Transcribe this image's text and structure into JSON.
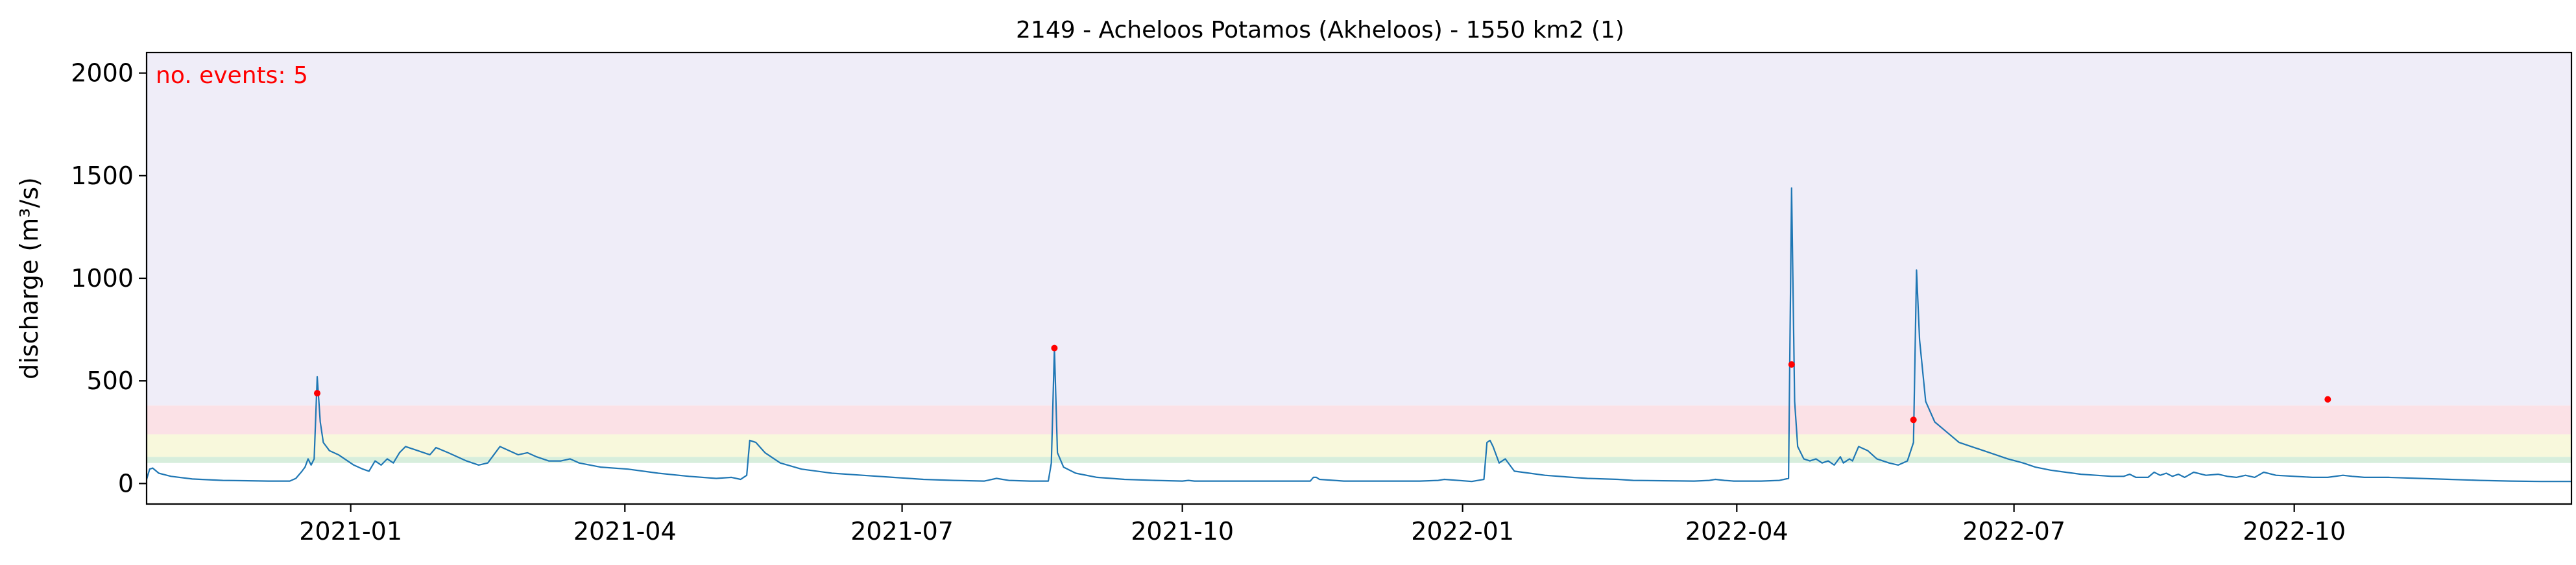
{
  "chart_data": {
    "type": "line",
    "title": "2149 - Acheloos Potamos (Akheloos) - 1550 km2 (1)",
    "xlabel": "",
    "ylabel": "discharge (m³/s)",
    "annotation": "no. events: 5",
    "xlim": [
      "2020-10-26",
      "2022-12-31"
    ],
    "ylim": [
      -100,
      2100
    ],
    "x_ticks": [
      "2021-01-01",
      "2021-04-01",
      "2021-07-01",
      "2021-10-01",
      "2022-01-01",
      "2022-04-01",
      "2022-07-01",
      "2022-10-01"
    ],
    "x_tick_labels": [
      "2021-01",
      "2021-04",
      "2021-07",
      "2021-10",
      "2022-01",
      "2022-04",
      "2022-07",
      "2022-10"
    ],
    "y_ticks": [
      0,
      500,
      1000,
      1500,
      2000
    ],
    "y_tick_labels": [
      "0",
      "500",
      "1000",
      "1500",
      "2000"
    ],
    "threshold_bands": [
      {
        "from": 100,
        "to": 130,
        "color": "#d7eedc"
      },
      {
        "from": 130,
        "to": 240,
        "color": "#f8f8dc"
      },
      {
        "from": 240,
        "to": 380,
        "color": "#fbe1e6"
      },
      {
        "from": 380,
        "to": 2100,
        "color": "#efedf8"
      }
    ],
    "series": [
      {
        "line_color": "#1f77b4",
        "points": [
          [
            "2020-10-26",
            20
          ],
          [
            "2020-10-27",
            70
          ],
          [
            "2020-10-28",
            75
          ],
          [
            "2020-10-30",
            50
          ],
          [
            "2020-11-03",
            35
          ],
          [
            "2020-11-10",
            22
          ],
          [
            "2020-11-20",
            15
          ],
          [
            "2020-12-05",
            12
          ],
          [
            "2020-12-12",
            12
          ],
          [
            "2020-12-14",
            25
          ],
          [
            "2020-12-16",
            60
          ],
          [
            "2020-12-17",
            80
          ],
          [
            "2020-12-18",
            120
          ],
          [
            "2020-12-19",
            90
          ],
          [
            "2020-12-20",
            120
          ],
          [
            "2020-12-21",
            520
          ],
          [
            "2020-12-22",
            300
          ],
          [
            "2020-12-23",
            200
          ],
          [
            "2020-12-25",
            160
          ],
          [
            "2020-12-28",
            140
          ],
          [
            "2021-01-02",
            90
          ],
          [
            "2021-01-05",
            70
          ],
          [
            "2021-01-07",
            60
          ],
          [
            "2021-01-09",
            110
          ],
          [
            "2021-01-11",
            90
          ],
          [
            "2021-01-13",
            120
          ],
          [
            "2021-01-15",
            100
          ],
          [
            "2021-01-17",
            150
          ],
          [
            "2021-01-19",
            180
          ],
          [
            "2021-01-23",
            160
          ],
          [
            "2021-01-27",
            140
          ],
          [
            "2021-01-29",
            175
          ],
          [
            "2021-02-02",
            150
          ],
          [
            "2021-02-08",
            110
          ],
          [
            "2021-02-12",
            90
          ],
          [
            "2021-02-15",
            100
          ],
          [
            "2021-02-19",
            180
          ],
          [
            "2021-02-22",
            160
          ],
          [
            "2021-02-25",
            140
          ],
          [
            "2021-02-28",
            150
          ],
          [
            "2021-03-03",
            130
          ],
          [
            "2021-03-07",
            110
          ],
          [
            "2021-03-11",
            110
          ],
          [
            "2021-03-14",
            120
          ],
          [
            "2021-03-17",
            100
          ],
          [
            "2021-03-24",
            80
          ],
          [
            "2021-04-02",
            70
          ],
          [
            "2021-04-12",
            50
          ],
          [
            "2021-04-22",
            35
          ],
          [
            "2021-05-01",
            25
          ],
          [
            "2021-05-06",
            30
          ],
          [
            "2021-05-09",
            20
          ],
          [
            "2021-05-11",
            40
          ],
          [
            "2021-05-12",
            210
          ],
          [
            "2021-05-14",
            200
          ],
          [
            "2021-05-17",
            150
          ],
          [
            "2021-05-22",
            100
          ],
          [
            "2021-05-29",
            70
          ],
          [
            "2021-06-08",
            50
          ],
          [
            "2021-06-18",
            40
          ],
          [
            "2021-06-28",
            30
          ],
          [
            "2021-07-08",
            20
          ],
          [
            "2021-07-18",
            15
          ],
          [
            "2021-07-28",
            12
          ],
          [
            "2021-08-01",
            25
          ],
          [
            "2021-08-05",
            15
          ],
          [
            "2021-08-12",
            12
          ],
          [
            "2021-08-18",
            12
          ],
          [
            "2021-08-19",
            100
          ],
          [
            "2021-08-20",
            660
          ],
          [
            "2021-08-21",
            150
          ],
          [
            "2021-08-23",
            80
          ],
          [
            "2021-08-27",
            50
          ],
          [
            "2021-09-03",
            30
          ],
          [
            "2021-09-12",
            20
          ],
          [
            "2021-09-22",
            15
          ],
          [
            "2021-10-01",
            12
          ],
          [
            "2021-10-03",
            15
          ],
          [
            "2021-10-05",
            12
          ],
          [
            "2021-10-22",
            12
          ],
          [
            "2021-11-10",
            12
          ],
          [
            "2021-11-12",
            12
          ],
          [
            "2021-11-13",
            30
          ],
          [
            "2021-11-14",
            30
          ],
          [
            "2021-11-15",
            20
          ],
          [
            "2021-11-23",
            12
          ],
          [
            "2021-12-12",
            12
          ],
          [
            "2021-12-18",
            12
          ],
          [
            "2021-12-24",
            15
          ],
          [
            "2021-12-26",
            20
          ],
          [
            "2022-01-04",
            10
          ],
          [
            "2022-01-08",
            20
          ],
          [
            "2022-01-09",
            200
          ],
          [
            "2022-01-10",
            210
          ],
          [
            "2022-01-11",
            180
          ],
          [
            "2022-01-13",
            100
          ],
          [
            "2022-01-15",
            120
          ],
          [
            "2022-01-17",
            80
          ],
          [
            "2022-01-18",
            60
          ],
          [
            "2022-01-23",
            50
          ],
          [
            "2022-01-28",
            40
          ],
          [
            "2022-02-06",
            30
          ],
          [
            "2022-02-11",
            25
          ],
          [
            "2022-02-21",
            20
          ],
          [
            "2022-02-26",
            15
          ],
          [
            "2022-03-18",
            12
          ],
          [
            "2022-03-23",
            15
          ],
          [
            "2022-03-25",
            20
          ],
          [
            "2022-03-28",
            15
          ],
          [
            "2022-03-31",
            12
          ],
          [
            "2022-04-01",
            12
          ],
          [
            "2022-04-09",
            12
          ],
          [
            "2022-04-15",
            15
          ],
          [
            "2022-04-18",
            25
          ],
          [
            "2022-04-19",
            1440
          ],
          [
            "2022-04-20",
            400
          ],
          [
            "2022-04-21",
            180
          ],
          [
            "2022-04-23",
            120
          ],
          [
            "2022-04-25",
            110
          ],
          [
            "2022-04-27",
            120
          ],
          [
            "2022-04-29",
            100
          ],
          [
            "2022-05-01",
            110
          ],
          [
            "2022-05-03",
            90
          ],
          [
            "2022-05-05",
            130
          ],
          [
            "2022-05-06",
            100
          ],
          [
            "2022-05-08",
            120
          ],
          [
            "2022-05-09",
            110
          ],
          [
            "2022-05-11",
            180
          ],
          [
            "2022-05-14",
            160
          ],
          [
            "2022-05-17",
            120
          ],
          [
            "2022-05-21",
            100
          ],
          [
            "2022-05-24",
            90
          ],
          [
            "2022-05-27",
            110
          ],
          [
            "2022-05-29",
            200
          ],
          [
            "2022-05-30",
            1040
          ],
          [
            "2022-05-31",
            700
          ],
          [
            "2022-06-02",
            400
          ],
          [
            "2022-06-05",
            300
          ],
          [
            "2022-06-09",
            250
          ],
          [
            "2022-06-13",
            200
          ],
          [
            "2022-06-17",
            180
          ],
          [
            "2022-06-21",
            160
          ],
          [
            "2022-06-25",
            140
          ],
          [
            "2022-06-29",
            120
          ],
          [
            "2022-07-04",
            100
          ],
          [
            "2022-07-08",
            80
          ],
          [
            "2022-07-13",
            65
          ],
          [
            "2022-07-18",
            55
          ],
          [
            "2022-07-23",
            45
          ],
          [
            "2022-07-28",
            40
          ],
          [
            "2022-08-02",
            35
          ],
          [
            "2022-08-06",
            35
          ],
          [
            "2022-08-08",
            45
          ],
          [
            "2022-08-10",
            30
          ],
          [
            "2022-08-14",
            30
          ],
          [
            "2022-08-16",
            55
          ],
          [
            "2022-08-18",
            40
          ],
          [
            "2022-08-20",
            50
          ],
          [
            "2022-08-22",
            35
          ],
          [
            "2022-08-24",
            45
          ],
          [
            "2022-08-26",
            30
          ],
          [
            "2022-08-29",
            55
          ],
          [
            "2022-09-02",
            40
          ],
          [
            "2022-09-06",
            45
          ],
          [
            "2022-09-09",
            35
          ],
          [
            "2022-09-12",
            30
          ],
          [
            "2022-09-15",
            40
          ],
          [
            "2022-09-18",
            30
          ],
          [
            "2022-09-21",
            55
          ],
          [
            "2022-09-25",
            40
          ],
          [
            "2022-10-01",
            35
          ],
          [
            "2022-10-07",
            30
          ],
          [
            "2022-10-12",
            30
          ],
          [
            "2022-10-17",
            40
          ],
          [
            "2022-10-20",
            35
          ],
          [
            "2022-10-24",
            30
          ],
          [
            "2022-11-01",
            30
          ],
          [
            "2022-11-11",
            25
          ],
          [
            "2022-11-21",
            20
          ],
          [
            "2022-12-01",
            15
          ],
          [
            "2022-12-11",
            12
          ],
          [
            "2022-12-21",
            10
          ],
          [
            "2022-12-31",
            10
          ]
        ]
      }
    ],
    "events": {
      "marker_color": "#ff0000",
      "points": [
        [
          "2020-12-21",
          440
        ],
        [
          "2021-08-20",
          660
        ],
        [
          "2022-04-19",
          580
        ],
        [
          "2022-05-29",
          310
        ],
        [
          "2022-10-12",
          410
        ]
      ]
    }
  }
}
